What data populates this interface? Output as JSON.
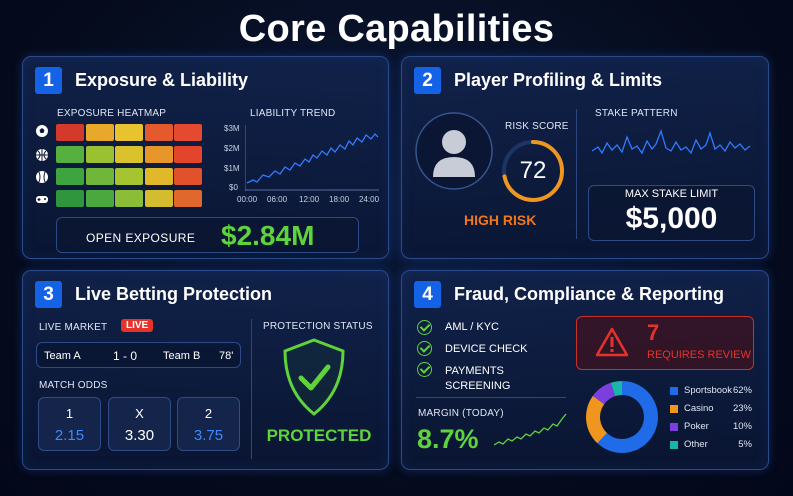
{
  "title": "Core Capabilities",
  "panels": {
    "p1": {
      "num": "1",
      "title": "Exposure & Liability",
      "heatmap_label": "EXPOSURE HEATMAP",
      "trend_label": "LIABILITY TREND",
      "y_ticks": [
        "$3M",
        "$2M",
        "$1M",
        "$0"
      ],
      "x_ticks": [
        "00:00",
        "06:00",
        "12:00",
        "18:00",
        "24:00"
      ],
      "sport_icons": [
        "soccer-ball-icon",
        "basketball-icon",
        "baseball-icon",
        "gamepad-icon"
      ],
      "heat_colors": [
        [
          "#d33a2c",
          "#e8a82a",
          "#e8c22f",
          "#e45a2c",
          "#e44a2f"
        ],
        [
          "#57b03d",
          "#9ac230",
          "#d9c22c",
          "#e7962b",
          "#e2452c"
        ],
        [
          "#3ea43f",
          "#6fb63a",
          "#a6c330",
          "#e1b72c",
          "#e1522c"
        ],
        [
          "#2f963d",
          "#4aa83f",
          "#8bbd36",
          "#d3bd2e",
          "#e0682c"
        ]
      ],
      "open_exposure_label": "OPEN EXPOSURE",
      "open_exposure_value": "$2.84M"
    },
    "p2": {
      "num": "2",
      "title": "Player Profiling & Limits",
      "risk_score_label": "RISK SCORE",
      "risk_score": "72",
      "risk_level": "HIGH RISK",
      "stake_pattern_label": "STAKE PATTERN",
      "max_stake_label": "MAX STAKE LIMIT",
      "max_stake_value": "$5,000"
    },
    "p3": {
      "num": "3",
      "title": "Live Betting Protection",
      "live_market_label": "LIVE MARKET",
      "live_badge": "LIVE",
      "team_a": "Team A",
      "score": "1 - 0",
      "team_b": "Team B",
      "minute": "78'",
      "match_odds_label": "MATCH ODDS",
      "odds": [
        {
          "label": "1",
          "value": "2.15"
        },
        {
          "label": "X",
          "value": "3.30"
        },
        {
          "label": "2",
          "value": "3.75"
        }
      ],
      "protection_label": "PROTECTION STATUS",
      "protection_status": "PROTECTED"
    },
    "p4": {
      "num": "4",
      "title": "Fraud, Compliance & Reporting",
      "checks": [
        "AML / KYC",
        "DEVICE CHECK",
        "PAYMENTS",
        "SCREENING"
      ],
      "review_count": "7",
      "review_label": "REQUIRES REVIEW",
      "margin_label": "MARGIN (TODAY)",
      "margin_value": "8.7%",
      "donut": [
        {
          "name": "Sportsbook",
          "pct": "62%",
          "value": 62,
          "color": "#1f6be8"
        },
        {
          "name": "Casino",
          "pct": "23%",
          "value": 23,
          "color": "#f0961e"
        },
        {
          "name": "Poker",
          "pct": "10%",
          "value": 10,
          "color": "#7b3fe0"
        },
        {
          "name": "Other",
          "pct": "5%",
          "value": 5,
          "color": "#18b7a8"
        }
      ]
    }
  },
  "colors": {
    "accent_blue": "#1463e6",
    "green": "#5fd33b",
    "risk_orange": "#f0761e",
    "alert_red": "#e5332a"
  }
}
